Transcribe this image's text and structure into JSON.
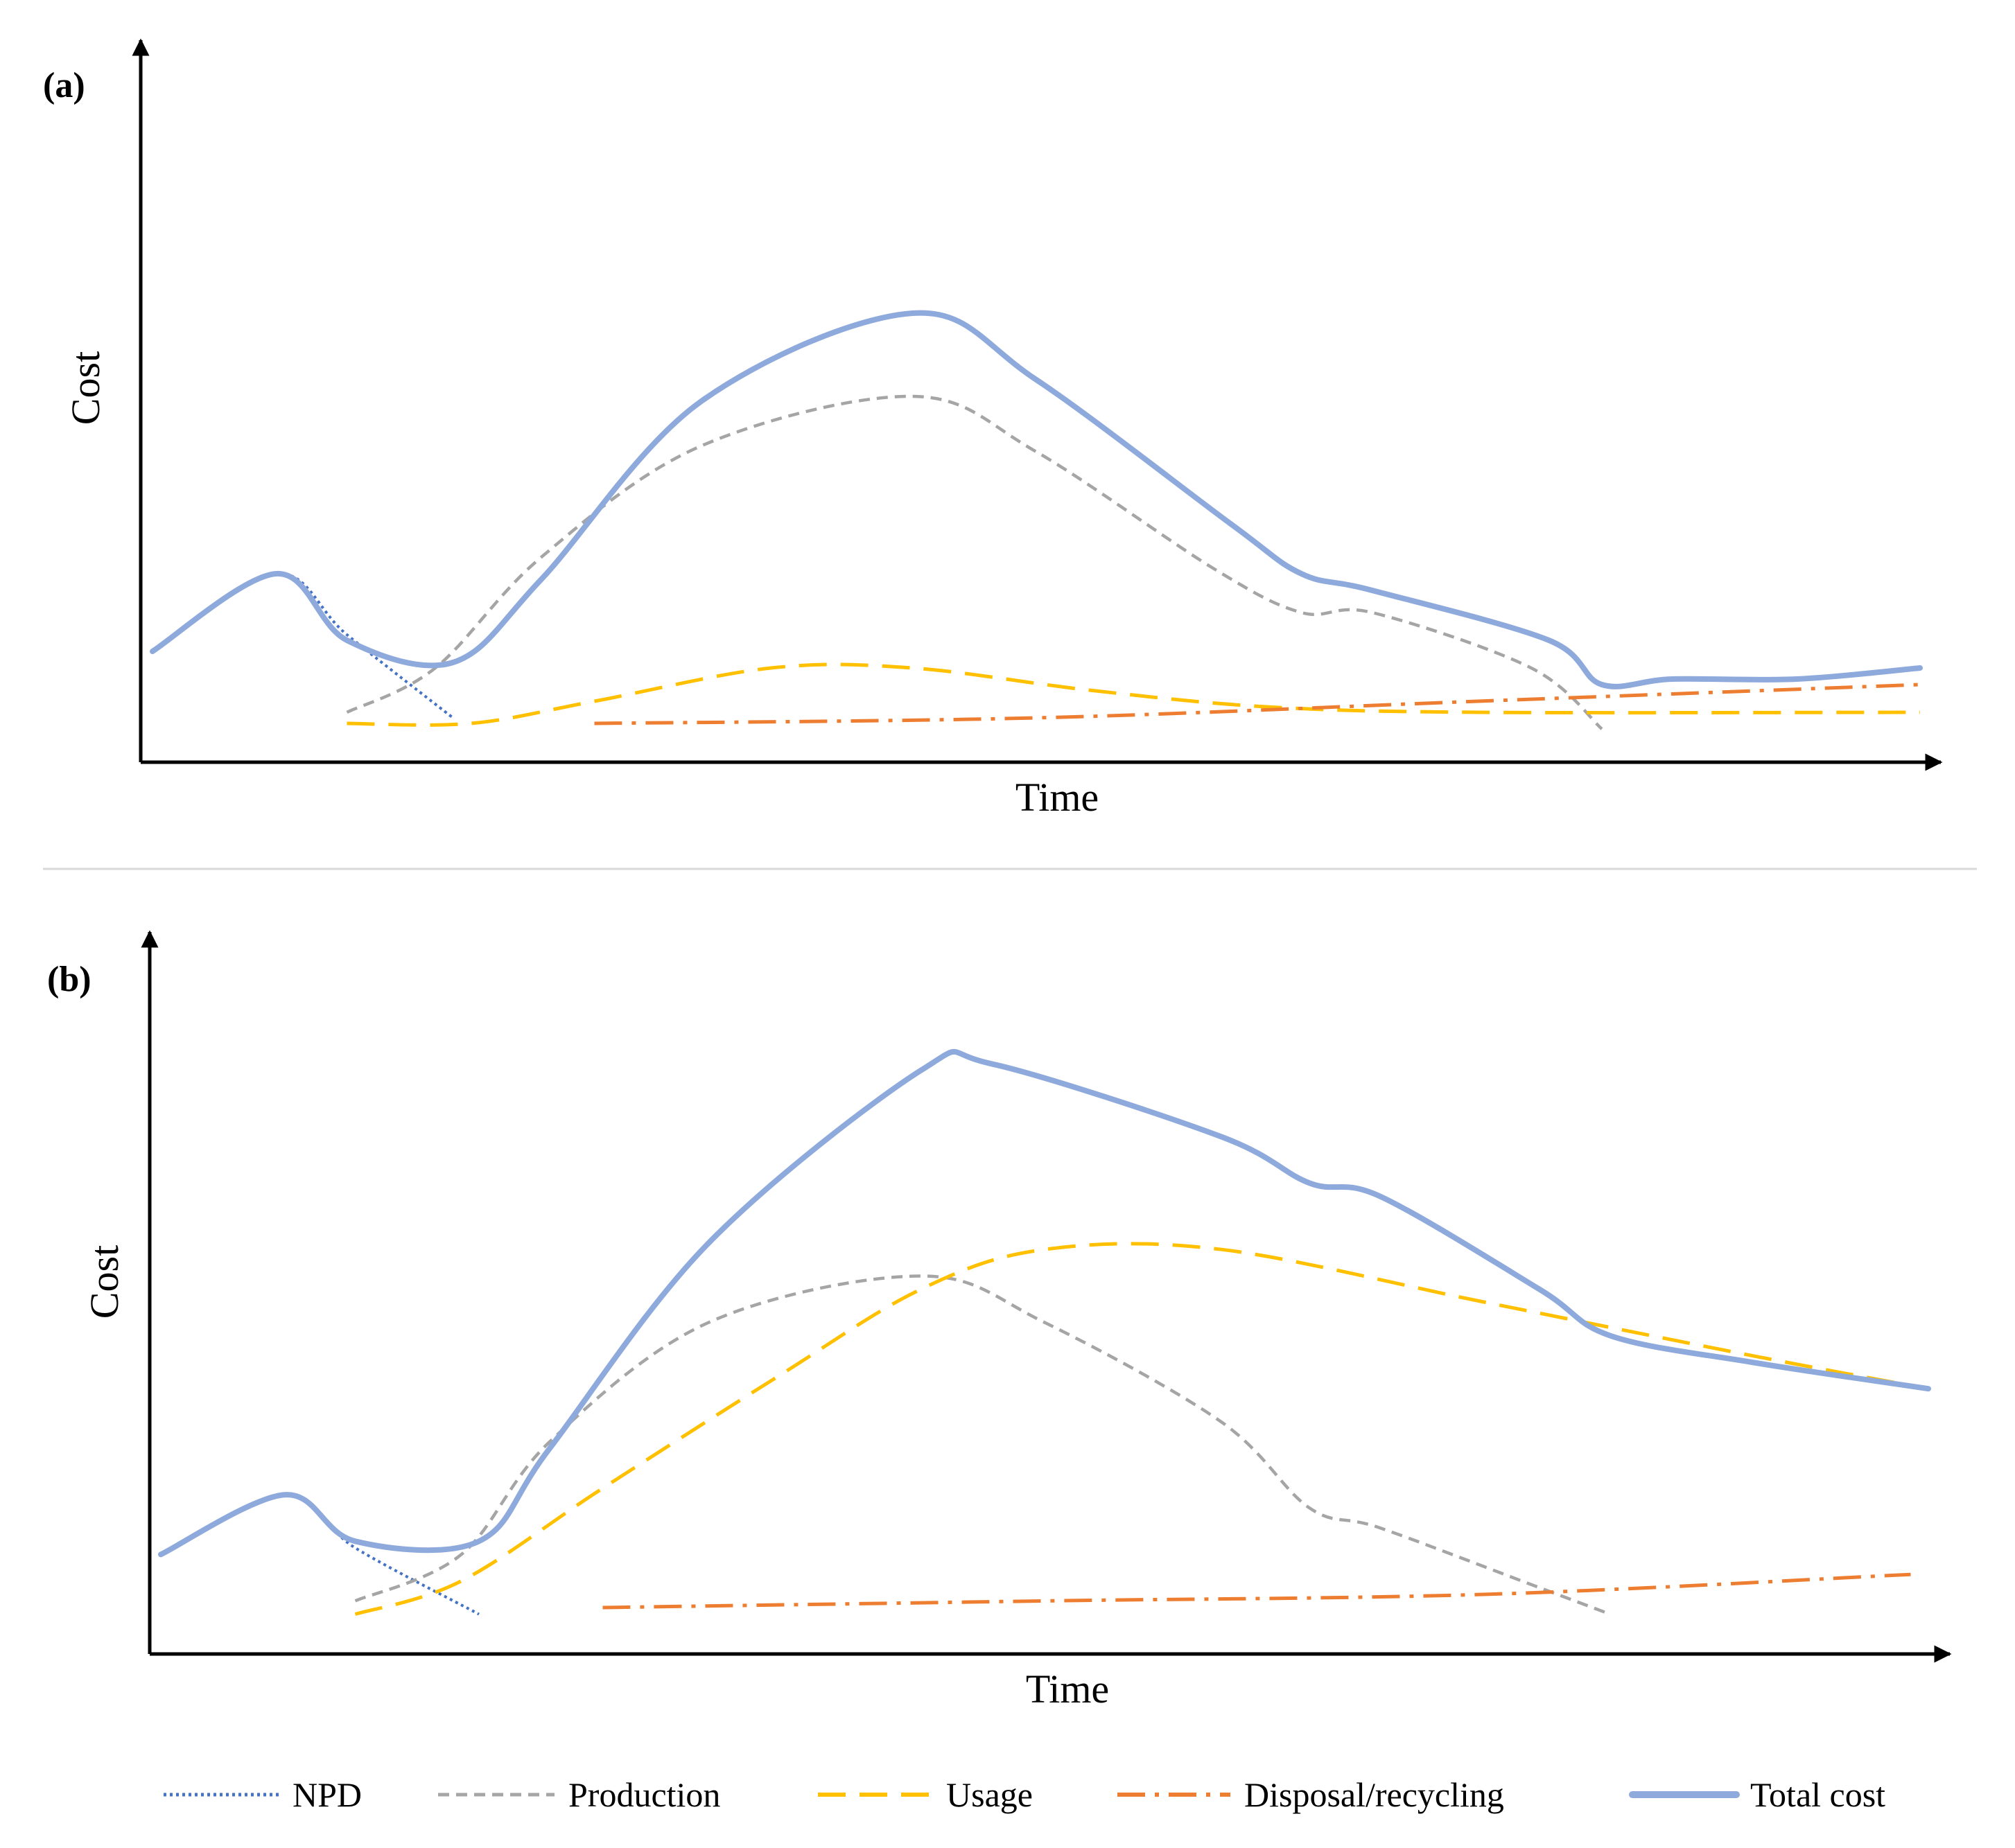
{
  "colors": {
    "npd": "#4472C4",
    "production": "#A5A5A5",
    "usage": "#FFC000",
    "disposal": "#ED7D31",
    "total": "#8EA9DB",
    "axis": "#000000",
    "separator": "#D9D9D9"
  },
  "chart_data": [
    {
      "type": "line",
      "panel_label": "(a)",
      "xlabel": "Time",
      "ylabel": "Cost",
      "xlim": [
        0,
        100
      ],
      "ylim": [
        0,
        100
      ],
      "series": [
        {
          "key": "npd",
          "name": "NPD",
          "points": [
            [
              0,
              20
            ],
            [
              7,
              34
            ],
            [
              11,
              23
            ],
            [
              17,
              8
            ]
          ]
        },
        {
          "key": "production",
          "name": "Production",
          "points": [
            [
              11,
              9
            ],
            [
              16,
              17
            ],
            [
              22,
              37
            ],
            [
              31,
              57
            ],
            [
              43,
              66
            ],
            [
              50,
              56
            ],
            [
              60,
              35
            ],
            [
              65,
              27
            ],
            [
              69,
              27
            ],
            [
              78,
              17
            ],
            [
              82,
              6
            ]
          ]
        },
        {
          "key": "usage",
          "name": "Usage",
          "points": [
            [
              11,
              7
            ],
            [
              18,
              7
            ],
            [
              25,
              11
            ],
            [
              35,
              17
            ],
            [
              43,
              17
            ],
            [
              53,
              13
            ],
            [
              63,
              10
            ],
            [
              75,
              9
            ],
            [
              100,
              9
            ]
          ]
        },
        {
          "key": "disposal",
          "name": "Disposal/recycling",
          "points": [
            [
              25,
              7
            ],
            [
              50,
              8
            ],
            [
              75,
              11
            ],
            [
              100,
              14
            ]
          ]
        },
        {
          "key": "total",
          "name": "Total cost",
          "points": [
            [
              0,
              20
            ],
            [
              7,
              34
            ],
            [
              11,
              22
            ],
            [
              17,
              18
            ],
            [
              22,
              33
            ],
            [
              31,
              65
            ],
            [
              43,
              81
            ],
            [
              50,
              69
            ],
            [
              61,
              43
            ],
            [
              65,
              34
            ],
            [
              69,
              31
            ],
            [
              79,
              22
            ],
            [
              82,
              14
            ],
            [
              86,
              15
            ],
            [
              93,
              15
            ],
            [
              100,
              17
            ]
          ]
        }
      ]
    },
    {
      "type": "line",
      "panel_label": "(b)",
      "xlabel": "Time",
      "ylabel": "Cost",
      "xlim": [
        0,
        100
      ],
      "ylim": [
        0,
        100
      ],
      "series": [
        {
          "key": "npd",
          "name": "NPD",
          "points": [
            [
              0,
              15
            ],
            [
              7,
              24
            ],
            [
              11,
              16
            ],
            [
              18,
              6
            ]
          ]
        },
        {
          "key": "production",
          "name": "Production",
          "points": [
            [
              11,
              8
            ],
            [
              17,
              15
            ],
            [
              22,
              32
            ],
            [
              31,
              50
            ],
            [
              43,
              57
            ],
            [
              50,
              50
            ],
            [
              60,
              35
            ],
            [
              65,
              22
            ],
            [
              69,
              19
            ],
            [
              78,
              10
            ],
            [
              82,
              6
            ]
          ]
        },
        {
          "key": "usage",
          "name": "Usage",
          "points": [
            [
              11,
              6
            ],
            [
              17,
              11
            ],
            [
              25,
              25
            ],
            [
              35,
              42
            ],
            [
              43,
              55
            ],
            [
              50,
              61
            ],
            [
              60,
              61
            ],
            [
              75,
              53
            ],
            [
              90,
              45
            ],
            [
              100,
              40
            ]
          ]
        },
        {
          "key": "disposal",
          "name": "Disposal/recycling",
          "points": [
            [
              25,
              7
            ],
            [
              50,
              8
            ],
            [
              75,
              9
            ],
            [
              99,
              12
            ]
          ]
        },
        {
          "key": "total",
          "name": "Total cost",
          "points": [
            [
              0,
              15
            ],
            [
              7,
              24
            ],
            [
              11,
              17
            ],
            [
              18,
              17
            ],
            [
              22,
              31
            ],
            [
              31,
              62
            ],
            [
              43,
              88
            ],
            [
              47,
              89
            ],
            [
              60,
              78
            ],
            [
              65,
              71
            ],
            [
              69,
              69
            ],
            [
              78,
              55
            ],
            [
              82,
              48
            ],
            [
              90,
              44
            ],
            [
              100,
              40
            ]
          ]
        }
      ]
    }
  ],
  "legend": {
    "placement": "bottom",
    "items": [
      {
        "key": "npd",
        "label": "NPD"
      },
      {
        "key": "production",
        "label": "Production"
      },
      {
        "key": "usage",
        "label": "Usage"
      },
      {
        "key": "disposal",
        "label": "Disposal/recycling"
      },
      {
        "key": "total",
        "label": "Total cost"
      }
    ]
  }
}
